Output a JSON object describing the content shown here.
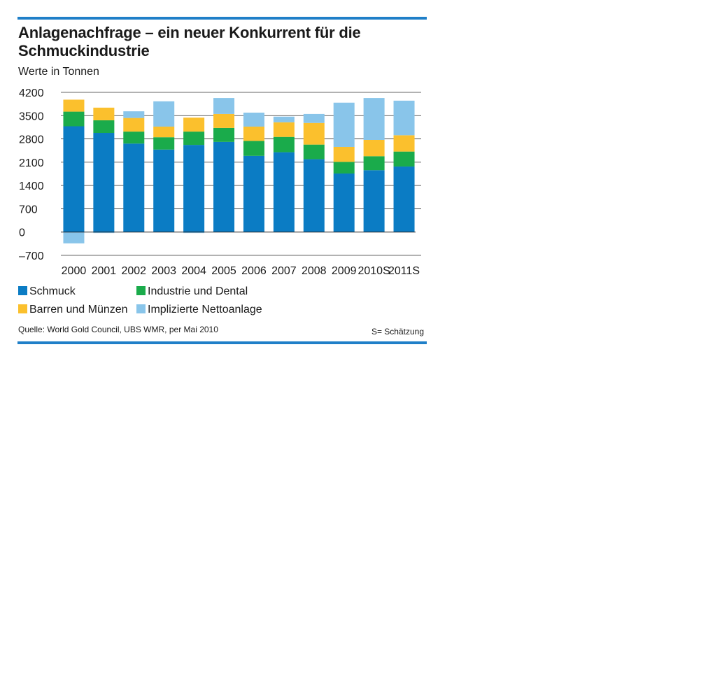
{
  "title": "Anlagenachfrage – ein neuer Konkurrent für die Schmuckindustrie",
  "subtitle": "Werte in Tonnen",
  "source": "Quelle:  World Gold Council, UBS WMR, per Mai 2010",
  "note": "S= Schätzung",
  "colors": {
    "accent": "#1f7fc8",
    "schmuck": "#0b7cc4",
    "industrie": "#1aab4b",
    "barren": "#fbc02d",
    "nettoanlage": "#89c5ea"
  },
  "legend": [
    {
      "name": "Schmuck",
      "color": "#0b7cc4"
    },
    {
      "name": "Industrie und Dental",
      "color": "#1aab4b"
    },
    {
      "name": "Barren und Münzen",
      "color": "#fbc02d"
    },
    {
      "name": "Implizierte Nettoanlage",
      "color": "#89c5ea"
    }
  ],
  "chart_data": {
    "type": "bar",
    "stacked": true,
    "title": "Anlagenachfrage – ein neuer Konkurrent für die Schmuckindustrie",
    "ylabel": "Werte in Tonnen",
    "xlabel": "",
    "ylim": [
      -700,
      4200
    ],
    "yticks": [
      4200,
      3500,
      2800,
      2100,
      1400,
      700,
      0,
      -700
    ],
    "ytick_labels": [
      "4200",
      "3500",
      "2800",
      "2100",
      "1400",
      "700",
      "0",
      "–700"
    ],
    "grid": true,
    "categories": [
      "2000",
      "2001",
      "2002",
      "2003",
      "2004",
      "2005",
      "2006",
      "2007",
      "2008",
      "2009",
      "2010S",
      "2011S"
    ],
    "series": [
      {
        "name": "Schmuck",
        "color": "#0b7cc4",
        "values": [
          3180,
          2980,
          2660,
          2480,
          2620,
          2710,
          2290,
          2400,
          2190,
          1760,
          1860,
          1970
        ]
      },
      {
        "name": "Industrie und Dental",
        "color": "#1aab4b",
        "values": [
          440,
          380,
          360,
          370,
          400,
          420,
          450,
          460,
          440,
          350,
          420,
          450
        ]
      },
      {
        "name": "Barren und Münzen",
        "color": "#fbc02d",
        "values": [
          360,
          380,
          410,
          320,
          420,
          420,
          430,
          440,
          650,
          450,
          490,
          490
        ]
      },
      {
        "name": "Implizierte Nettoanlage",
        "color": "#89c5ea",
        "values": [
          -340,
          -30,
          200,
          760,
          -30,
          480,
          420,
          170,
          270,
          1330,
          1260,
          1040
        ]
      }
    ]
  }
}
